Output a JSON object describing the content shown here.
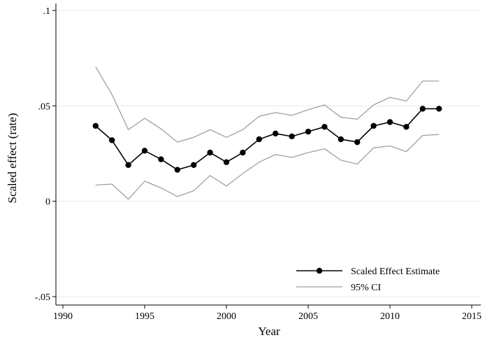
{
  "chart_data": {
    "type": "line",
    "title": "",
    "xlabel": "Year",
    "ylabel": "Scaled effect (rate)",
    "xlim": [
      1990,
      2015
    ],
    "ylim": [
      -0.05,
      0.1
    ],
    "xticks": [
      1990,
      1995,
      2000,
      2005,
      2010,
      2015
    ],
    "xtick_labels": [
      "1990",
      "1995",
      "2000",
      "2005",
      "2010",
      "2015"
    ],
    "yticks": [
      -0.05,
      0,
      0.05,
      0.1
    ],
    "ytick_labels": [
      "-.05",
      "0",
      ".05",
      ".1"
    ],
    "grid": "horizontal",
    "legend_position": "bottom-right",
    "x": [
      1992,
      1993,
      1994,
      1995,
      1996,
      1997,
      1998,
      1999,
      2000,
      2001,
      2002,
      2003,
      2004,
      2005,
      2006,
      2007,
      2008,
      2009,
      2010,
      2011,
      2012,
      2013
    ],
    "series": [
      {
        "name": "Scaled Effect Estimate",
        "color": "#000000",
        "markers": true,
        "values": [
          0.0395,
          0.032,
          0.019,
          0.0265,
          0.022,
          0.0165,
          0.019,
          0.0255,
          0.0205,
          0.0255,
          0.0325,
          0.0355,
          0.034,
          0.0365,
          0.039,
          0.0325,
          0.031,
          0.0395,
          0.0415,
          0.039,
          0.0485,
          0.0485
        ]
      },
      {
        "name": "95% CI",
        "color": "#a0a0a0",
        "markers": false,
        "values": [
          0.0705,
          0.056,
          0.0375,
          0.0435,
          0.038,
          0.031,
          0.0335,
          0.0375,
          0.0335,
          0.0375,
          0.0445,
          0.0465,
          0.045,
          0.048,
          0.0505,
          0.044,
          0.043,
          0.0505,
          0.0545,
          0.0525,
          0.063,
          0.063
        ]
      },
      {
        "name": "",
        "color": "#a0a0a0",
        "markers": false,
        "values": [
          0.0085,
          0.009,
          0.001,
          0.0105,
          0.007,
          0.0025,
          0.0055,
          0.0135,
          0.008,
          0.0145,
          0.0205,
          0.0245,
          0.023,
          0.0255,
          0.0275,
          0.0215,
          0.0195,
          0.028,
          0.029,
          0.026,
          0.0345,
          0.035
        ]
      }
    ],
    "legend": [
      {
        "label": "Scaled Effect Estimate",
        "style": "line-marker",
        "color": "#000000"
      },
      {
        "label": "95% CI",
        "style": "line",
        "color": "#a0a0a0"
      }
    ]
  }
}
